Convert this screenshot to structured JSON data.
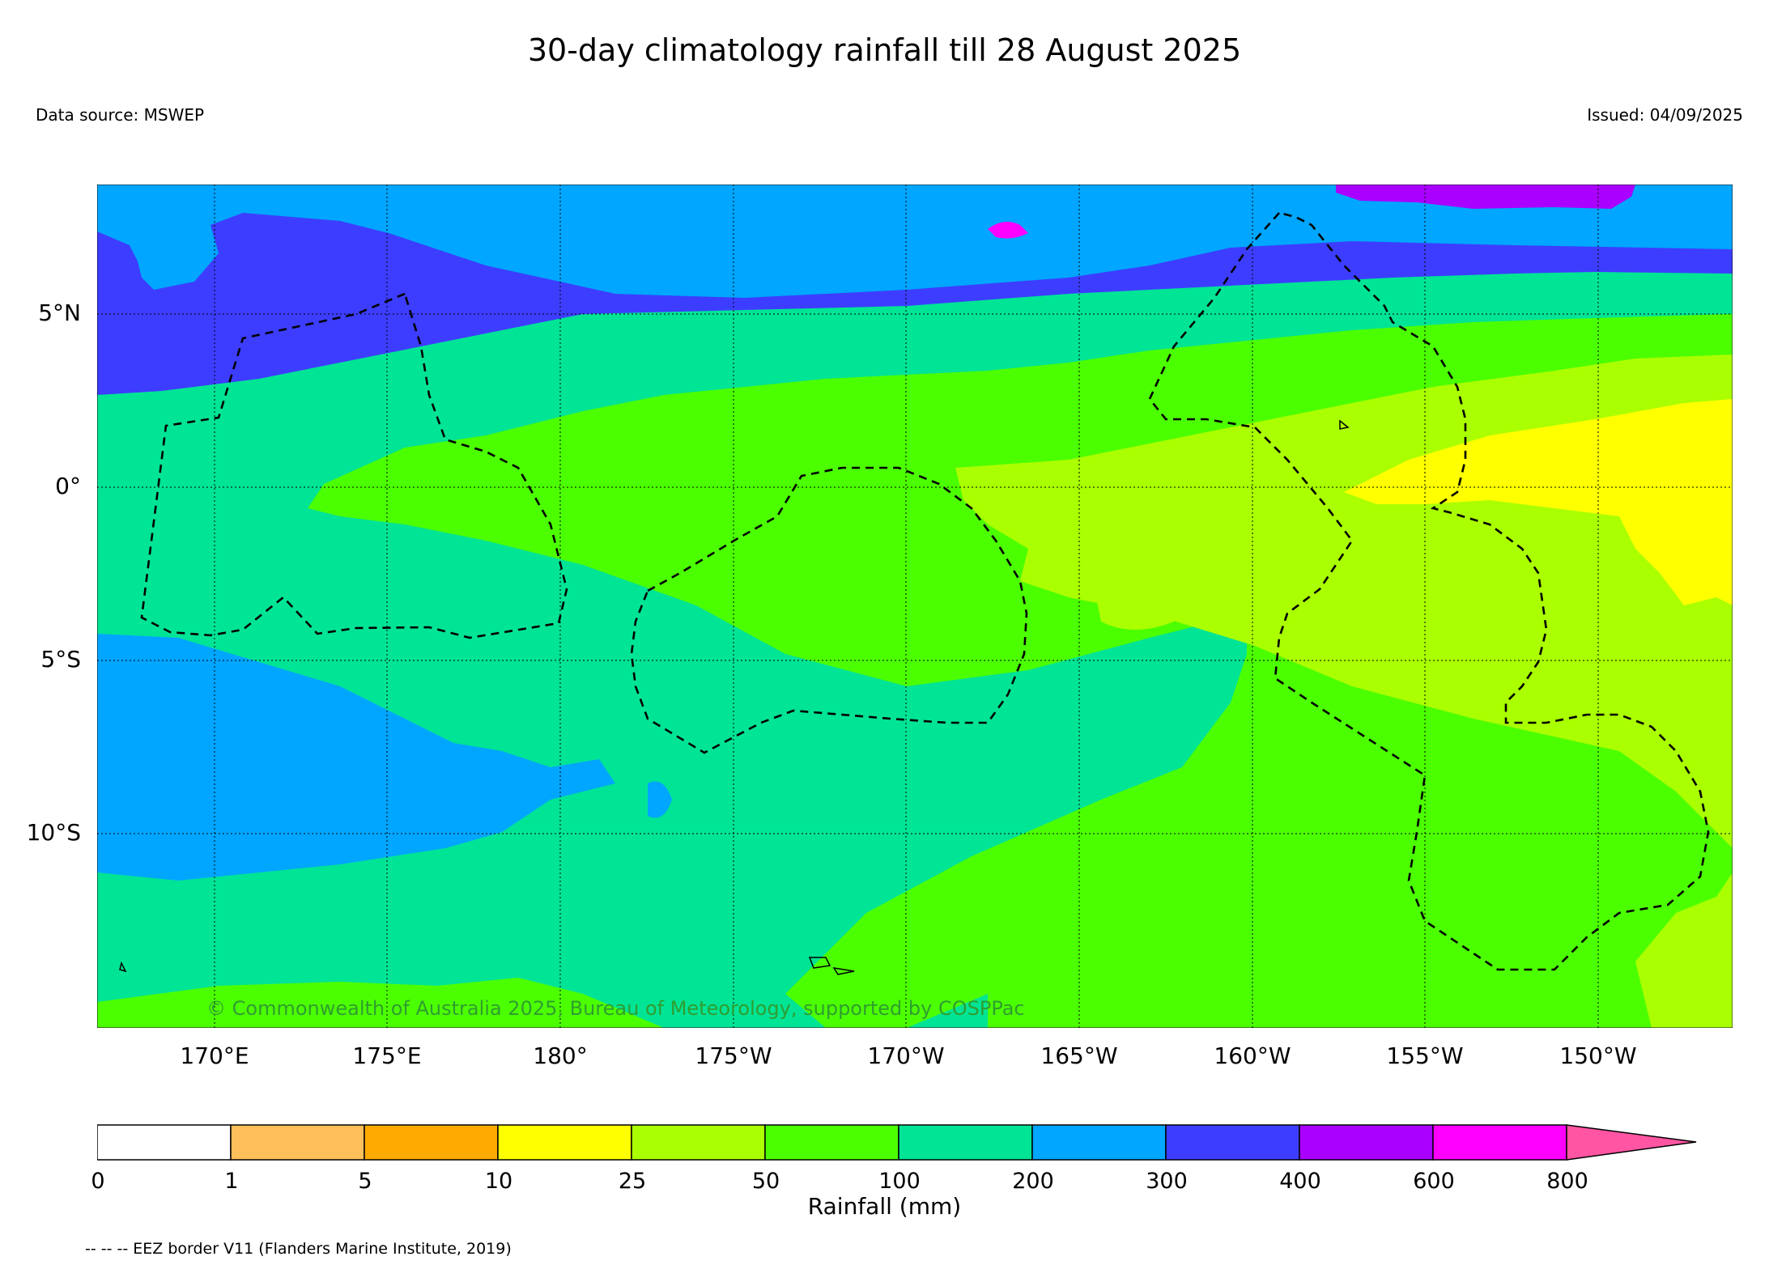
{
  "title": "30-day climatology rainfall till 28 August 2025",
  "data_source": "Data source: MSWEP",
  "issued": "Issued: 04/09/2025",
  "copyright": "© Commonwealth of Australia 2025, Bureau of Meteorology, supported by COSPPac",
  "eez_note": "-- -- -- EEZ border V11 (Flanders Marine Institute, 2019)",
  "map": {
    "lat_labels": [
      "5°N",
      "0°",
      "5°S",
      "10°S"
    ],
    "lon_labels": [
      "170°E",
      "175°E",
      "180°",
      "175°W",
      "170°W",
      "165°W",
      "160°W",
      "155°W",
      "150°W"
    ]
  },
  "colorbar": {
    "label": "Rainfall (mm)",
    "ticks": [
      "0",
      "1",
      "5",
      "10",
      "25",
      "50",
      "100",
      "200",
      "300",
      "400",
      "600",
      "800"
    ],
    "colors": [
      "#ffffff",
      "#ffbf5a",
      "#ffaa00",
      "#ffff00",
      "#aaff00",
      "#4cff00",
      "#00e496",
      "#00a6ff",
      "#3d3dff",
      "#aa00ff",
      "#ff00ff",
      "#ff55a3"
    ],
    "extend": "max"
  }
}
